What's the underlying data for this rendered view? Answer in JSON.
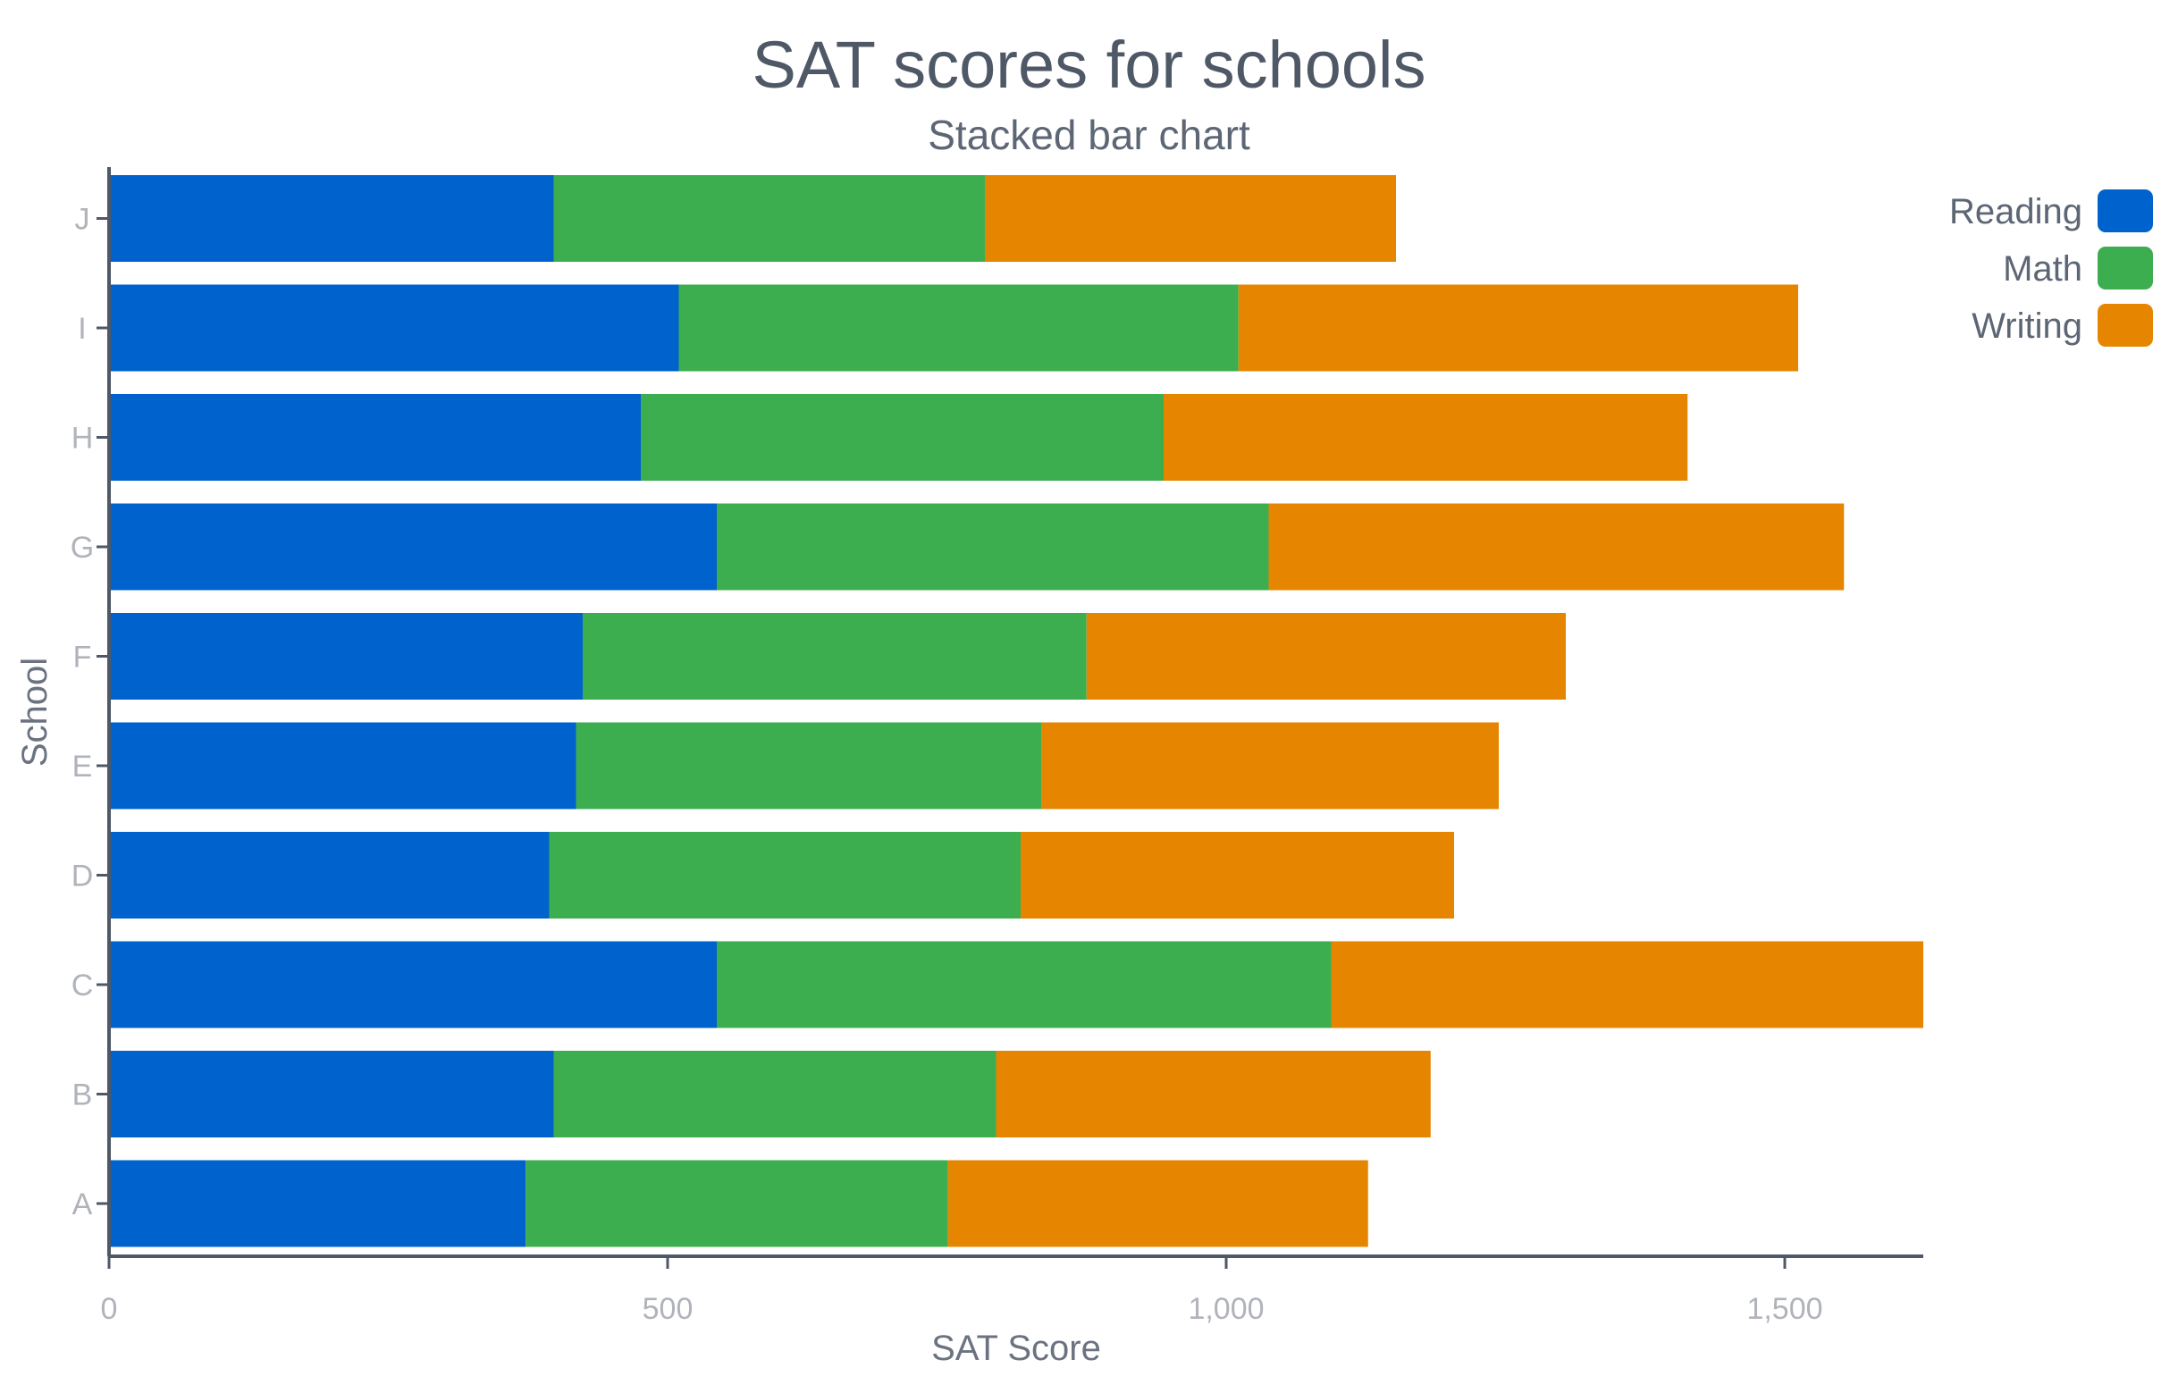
{
  "chart_data": {
    "type": "bar",
    "orientation": "horizontal",
    "stacked": true,
    "title": "SAT scores for schools",
    "subtitle": "Stacked bar chart",
    "xlabel": "SAT Score",
    "ylabel": "School",
    "xlim": [
      0,
      1625
    ],
    "xticks": [
      0,
      500,
      1000,
      1500
    ],
    "xtick_labels": [
      "0",
      "500",
      "1,000",
      "1,500"
    ],
    "categories": [
      "A",
      "B",
      "C",
      "D",
      "E",
      "F",
      "G",
      "H",
      "I",
      "J"
    ],
    "series": [
      {
        "name": "Reading",
        "color": "#0062CC",
        "values": [
          373,
          398,
          544,
          394,
          418,
          424,
          544,
          476,
          510,
          398
        ]
      },
      {
        "name": "Math",
        "color": "#3DAE50",
        "values": [
          378,
          396,
          550,
          422,
          417,
          451,
          494,
          468,
          501,
          386
        ]
      },
      {
        "name": "Writing",
        "color": "#E68600",
        "values": [
          376,
          389,
          530,
          388,
          409,
          429,
          515,
          469,
          501,
          368
        ]
      }
    ],
    "grid": false,
    "legend": "top-right"
  }
}
